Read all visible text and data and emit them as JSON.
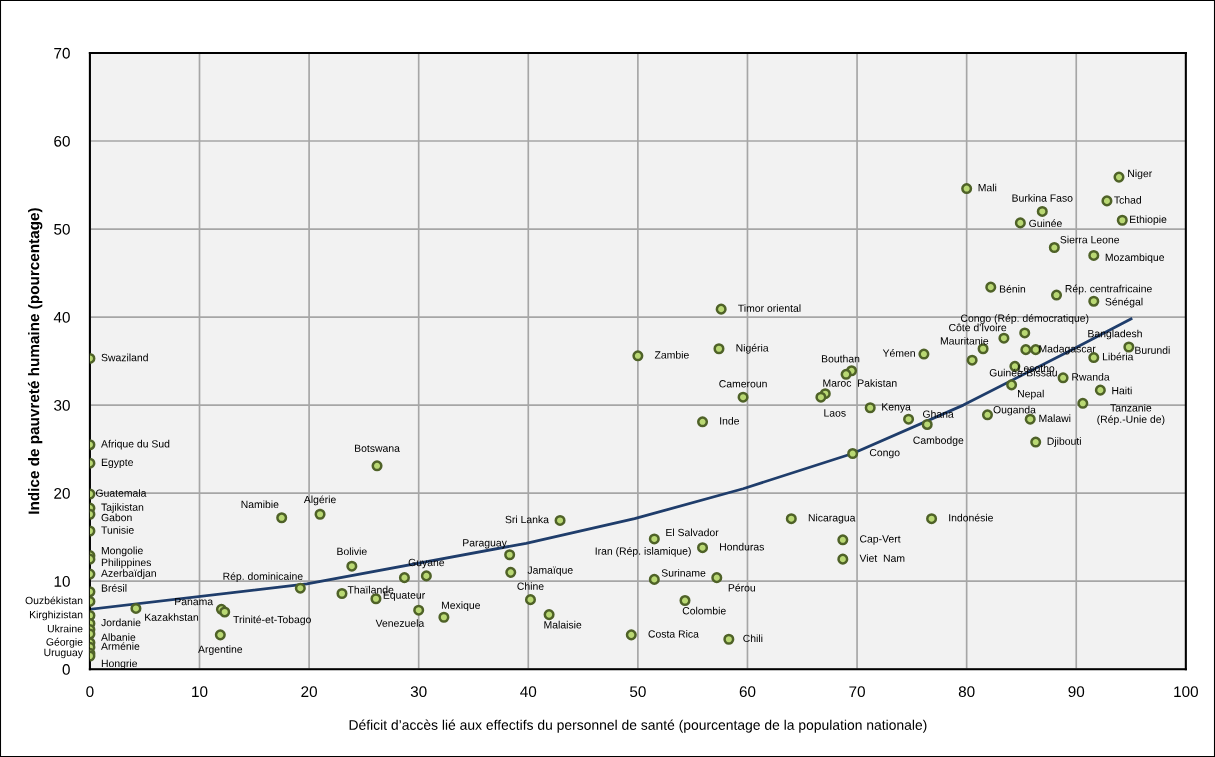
{
  "chart_data": {
    "type": "scatter",
    "xlabel": "Déficit d’accès lié aux effectifs du personnel de santé (pourcentage de la population nationale)",
    "ylabel": "Indice de pauvreté humaine (pourcentage)",
    "xlim": [
      0,
      100
    ],
    "ylim": [
      0,
      70
    ],
    "xticks": [
      0,
      10,
      20,
      30,
      40,
      50,
      60,
      70,
      80,
      90,
      100
    ],
    "yticks": [
      0,
      10,
      20,
      30,
      40,
      50,
      60,
      70
    ],
    "grid": true,
    "series": [
      {
        "color": "#4f6228",
        "marker": "circle",
        "x": [
          0,
          0,
          0,
          0,
          0,
          0,
          0,
          0,
          0,
          0,
          0,
          0,
          4.2,
          0,
          0,
          0,
          0,
          0,
          0,
          0,
          0,
          17.5,
          21.0,
          26.2,
          23.9,
          19.2,
          23.0,
          26.1,
          30.0,
          32.3,
          30.7,
          28.7,
          12.0,
          12.3,
          11.9,
          38.3,
          38.4,
          42.9,
          40.2,
          41.9,
          50.0,
          57.6,
          57.4,
          59.6,
          55.9,
          51.5,
          55.9,
          51.5,
          57.2,
          54.3,
          49.4,
          58.3,
          64.0,
          76.8,
          68.7,
          68.7,
          69.6,
          71.2,
          74.7,
          76.4,
          69.5,
          69.0,
          67.1,
          66.7,
          76.1,
          81.5,
          80.5,
          83.4,
          85.3,
          86.3,
          85.4,
          94.8,
          91.6,
          84.4,
          88.8,
          84.1,
          92.2,
          90.6,
          81.9,
          85.8,
          86.3,
          80.0,
          86.9,
          84.9,
          93.9,
          92.8,
          94.2,
          88.0,
          91.6,
          82.2,
          88.2,
          91.6
        ],
        "values": [
          35.3,
          25.5,
          23.4,
          19.9,
          18.3,
          17.6,
          15.7,
          12.9,
          12.5,
          10.8,
          8.8,
          7.7,
          6.9,
          6.1,
          5.2,
          4.5,
          4.0,
          3.0,
          2.5,
          1.8,
          1.5,
          17.2,
          17.6,
          23.1,
          11.7,
          9.2,
          8.6,
          8.0,
          6.7,
          5.9,
          10.6,
          10.4,
          6.8,
          6.5,
          3.9,
          13.0,
          11.0,
          16.9,
          7.9,
          6.2,
          35.6,
          40.9,
          36.4,
          30.9,
          28.1,
          14.8,
          13.8,
          10.2,
          10.4,
          7.8,
          3.9,
          3.4,
          17.1,
          17.1,
          14.7,
          12.5,
          24.5,
          29.7,
          28.4,
          27.8,
          33.9,
          33.5,
          31.3,
          30.9,
          35.8,
          36.4,
          35.1,
          37.6,
          38.2,
          36.3,
          36.3,
          36.6,
          35.4,
          34.4,
          33.1,
          32.3,
          31.7,
          30.2,
          28.9,
          28.4,
          25.8,
          54.6,
          52.0,
          50.7,
          55.9,
          53.2,
          51.0,
          47.9,
          47.0,
          43.4,
          42.5,
          41.8
        ]
      },
      {
        "type": "line",
        "color": "#1f3d6b",
        "marker": "none",
        "line_style": "solid",
        "x": [
          0,
          19.8,
          39.8,
          49.7,
          59.6,
          69.6,
          79.7,
          89.3,
          95
        ],
        "values": [
          6.8,
          9.7,
          14.3,
          17.1,
          20.5,
          24.5,
          30.0,
          36.1,
          39.8
        ]
      }
    ],
    "annotations": [
      {
        "text": "Swaziland",
        "x": 0,
        "y": 35.3
      },
      {
        "text": "Afrique du Sud",
        "x": 0,
        "y": 25.5
      },
      {
        "text": "Egypte",
        "x": 0,
        "y": 23.4
      },
      {
        "text": "Guatemala",
        "x": 0,
        "y": 19.9
      },
      {
        "text": "Tajikistan",
        "x": 0,
        "y": 18.3
      },
      {
        "text": "Gabon",
        "x": 0,
        "y": 17.6
      },
      {
        "text": "Tunisie",
        "x": 0,
        "y": 15.7
      },
      {
        "text": "Mongolie",
        "x": 0,
        "y": 12.9
      },
      {
        "text": "Philippines",
        "x": 0,
        "y": 12.5
      },
      {
        "text": "Azerbaïdjan",
        "x": 0,
        "y": 10.8
      },
      {
        "text": "Brésil",
        "x": 0,
        "y": 8.8
      },
      {
        "text": "Ouzbékistan",
        "x": 0,
        "y": 7.7
      },
      {
        "text": "Kazakhstan",
        "x": 4.2,
        "y": 6.9
      },
      {
        "text": "Kirghizistan",
        "x": 0,
        "y": 6.1
      },
      {
        "text": "Jordanie",
        "x": 0,
        "y": 5.2
      },
      {
        "text": "Ukraine",
        "x": 0,
        "y": 4.5
      },
      {
        "text": "Albanie",
        "x": 0,
        "y": 4.0
      },
      {
        "text": "Géorgie",
        "x": 0,
        "y": 3.0
      },
      {
        "text": "Arménie",
        "x": 0,
        "y": 2.5
      },
      {
        "text": "Uruguay",
        "x": 0,
        "y": 1.8
      },
      {
        "text": "Hongrie",
        "x": 0,
        "y": 1.5
      },
      {
        "text": "Namibie",
        "x": 17.5,
        "y": 17.2
      },
      {
        "text": "Algérie",
        "x": 21.0,
        "y": 17.6
      },
      {
        "text": "Botswana",
        "x": 26.2,
        "y": 23.1
      },
      {
        "text": "Bolivie",
        "x": 23.9,
        "y": 11.7
      },
      {
        "text": "Rép. dominicaine",
        "x": 19.2,
        "y": 9.2
      },
      {
        "text": "Thaïlande",
        "x": 23.0,
        "y": 8.6
      },
      {
        "text": "Equateur",
        "x": 26.1,
        "y": 8.0
      },
      {
        "text": "Venezuela",
        "x": 30.0,
        "y": 6.7
      },
      {
        "text": "Mexique",
        "x": 32.3,
        "y": 5.9
      },
      {
        "text": "Guyane",
        "x": 30.7,
        "y": 10.6
      },
      {
        "text": "Panama",
        "x": 12.0,
        "y": 6.8
      },
      {
        "text": "Trinité-et-Tobago",
        "x": 12.3,
        "y": 6.5
      },
      {
        "text": "Argentine",
        "x": 11.9,
        "y": 3.9
      },
      {
        "text": "Paraguay",
        "x": 38.3,
        "y": 13.0
      },
      {
        "text": "Jamaïque",
        "x": 38.4,
        "y": 11.0
      },
      {
        "text": "Sri Lanka",
        "x": 42.9,
        "y": 16.9
      },
      {
        "text": "Chine",
        "x": 40.2,
        "y": 7.9
      },
      {
        "text": "Malaisie",
        "x": 41.9,
        "y": 6.2
      },
      {
        "text": "Zambie",
        "x": 50.0,
        "y": 35.6
      },
      {
        "text": "Timor oriental",
        "x": 57.6,
        "y": 40.9
      },
      {
        "text": "Nigéria",
        "x": 57.4,
        "y": 36.4
      },
      {
        "text": "Cameroun",
        "x": 59.6,
        "y": 30.9
      },
      {
        "text": "Inde",
        "x": 55.9,
        "y": 28.1
      },
      {
        "text": "El Salvador",
        "x": 51.5,
        "y": 14.8
      },
      {
        "text": "Iran (Rép. islamique)",
        "x": 55.9,
        "y": 13.8
      },
      {
        "text": "Honduras",
        "x": 55.9,
        "y": 13.8
      },
      {
        "text": "Suriname",
        "x": 51.5,
        "y": 10.2
      },
      {
        "text": "Pérou",
        "x": 57.2,
        "y": 10.4
      },
      {
        "text": "Colombie",
        "x": 54.3,
        "y": 7.8
      },
      {
        "text": "Costa Rica",
        "x": 49.4,
        "y": 3.9
      },
      {
        "text": "Chili",
        "x": 58.3,
        "y": 3.4
      },
      {
        "text": "Nicaragua",
        "x": 64.0,
        "y": 17.1
      },
      {
        "text": "Indonésie",
        "x": 76.8,
        "y": 17.1
      },
      {
        "text": "Cap-Vert",
        "x": 68.7,
        "y": 14.7
      },
      {
        "text": "Viet  Nam",
        "x": 68.7,
        "y": 12.5
      },
      {
        "text": "Congo",
        "x": 69.6,
        "y": 24.5
      },
      {
        "text": "Kenya",
        "x": 71.2,
        "y": 29.7
      },
      {
        "text": "Ghana",
        "x": 74.7,
        "y": 28.4
      },
      {
        "text": "Cambodge",
        "x": 76.4,
        "y": 27.8
      },
      {
        "text": "Bouthan",
        "x": 69.5,
        "y": 33.9
      },
      {
        "text": "Pakistan",
        "x": 69.0,
        "y": 33.5
      },
      {
        "text": "Maroc",
        "x": 67.1,
        "y": 31.3
      },
      {
        "text": "Laos",
        "x": 66.7,
        "y": 30.9
      },
      {
        "text": "Yémen",
        "x": 76.1,
        "y": 35.8
      },
      {
        "text": "Mauritanie",
        "x": 81.5,
        "y": 36.4
      },
      {
        "text": "Côte d'Ivoire",
        "x": 83.4,
        "y": 37.6
      },
      {
        "text": "Congo (Rép. démocratique)",
        "x": 85.3,
        "y": 38.2
      },
      {
        "text": "Madagascar",
        "x": 86.3,
        "y": 36.3
      },
      {
        "text": "Bangladesh",
        "x": 94.8,
        "y": 36.6
      },
      {
        "text": "Burundi",
        "x": 94.8,
        "y": 36.6
      },
      {
        "text": "Libéria",
        "x": 91.6,
        "y": 35.4
      },
      {
        "text": "Lesotho",
        "x": 84.4,
        "y": 34.4
      },
      {
        "text": "Guinée-Bissau",
        "x": 88.8,
        "y": 33.1
      },
      {
        "text": "Nepal",
        "x": 84.1,
        "y": 32.3
      },
      {
        "text": "Rwanda",
        "x": 88.8,
        "y": 33.1
      },
      {
        "text": "Haiti",
        "x": 92.2,
        "y": 31.7
      },
      {
        "text": "Tanzanie\n(Rép.-Unie de)",
        "x": 90.6,
        "y": 30.2
      },
      {
        "text": "Ouganda",
        "x": 81.9,
        "y": 28.9
      },
      {
        "text": "Malawi",
        "x": 85.8,
        "y": 28.4
      },
      {
        "text": "Djibouti",
        "x": 86.3,
        "y": 25.8
      },
      {
        "text": "Mali",
        "x": 80.0,
        "y": 54.6
      },
      {
        "text": "Burkina Faso",
        "x": 86.9,
        "y": 52.0
      },
      {
        "text": "Guinée",
        "x": 84.9,
        "y": 50.7
      },
      {
        "text": "Niger",
        "x": 93.9,
        "y": 55.9
      },
      {
        "text": "Tchad",
        "x": 92.8,
        "y": 53.2
      },
      {
        "text": "Ethiopie",
        "x": 94.2,
        "y": 51.0
      },
      {
        "text": "Sierra Leone",
        "x": 88.0,
        "y": 47.9
      },
      {
        "text": "Mozambique",
        "x": 91.6,
        "y": 47.0
      },
      {
        "text": "Bénin",
        "x": 82.2,
        "y": 43.4
      },
      {
        "text": "Rép. centrafricaine",
        "x": 88.2,
        "y": 42.5
      },
      {
        "text": "Sénégal",
        "x": 91.6,
        "y": 41.8
      }
    ]
  }
}
